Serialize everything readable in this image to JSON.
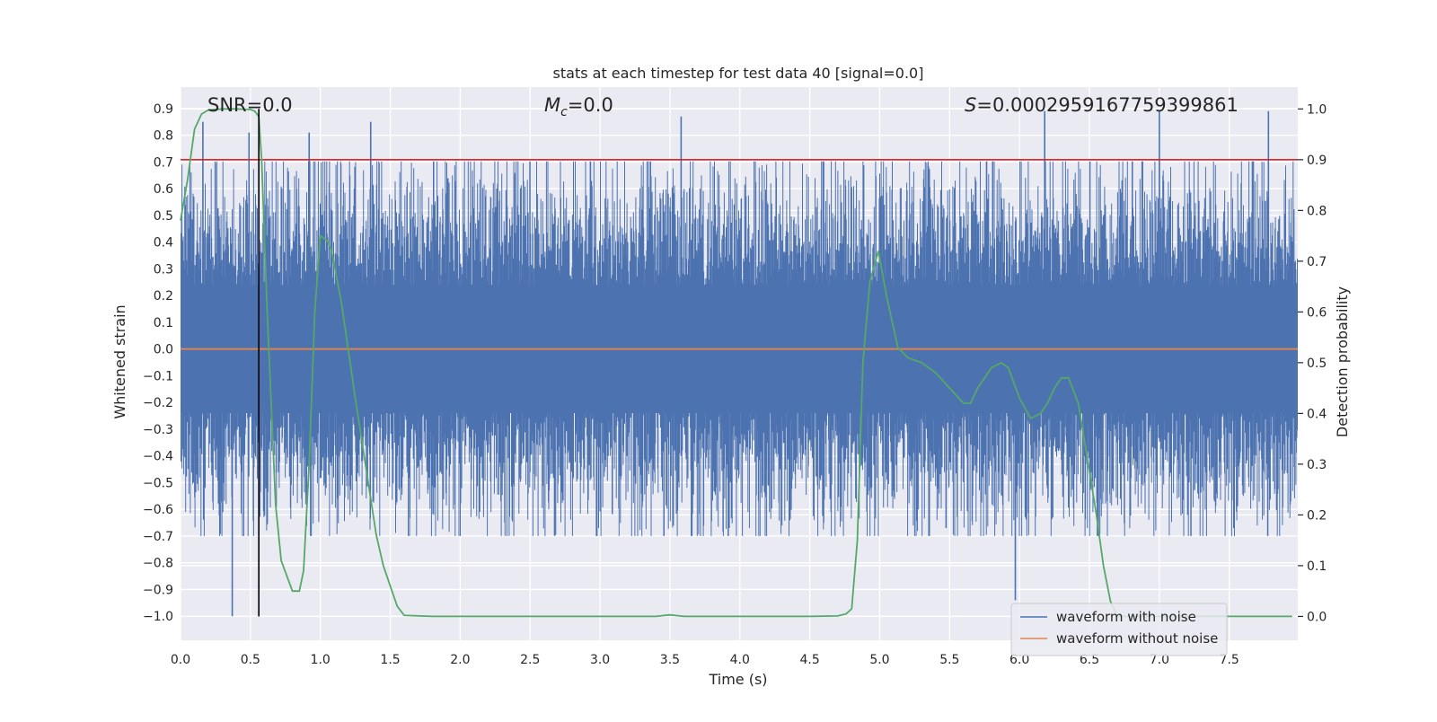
{
  "chart_data": {
    "type": "line",
    "title": "stats at each timestep for test data 40 [signal=0.0]",
    "xlabel": "Time (s)",
    "ylabel": "Whitened strain",
    "y2label": "Detection probability",
    "xlim": [
      0.0,
      7.99
    ],
    "ylim": [
      -1.09,
      0.98
    ],
    "y2lim": [
      -0.047,
      1.043
    ],
    "xticks": [
      0.0,
      0.5,
      1.0,
      1.5,
      2.0,
      2.5,
      3.0,
      3.5,
      4.0,
      4.5,
      5.0,
      5.5,
      6.0,
      6.5,
      7.0,
      7.5
    ],
    "xtick_labels": [
      "0.0",
      "0.5",
      "1.0",
      "1.5",
      "2.0",
      "2.5",
      "3.0",
      "3.5",
      "4.0",
      "4.5",
      "5.0",
      "5.5",
      "6.0",
      "6.5",
      "7.0",
      "7.5"
    ],
    "yticks": [
      0.9,
      0.8,
      0.7,
      0.6,
      0.5,
      0.4,
      0.3,
      0.2,
      0.1,
      0.0,
      -0.1,
      -0.2,
      -0.3,
      -0.4,
      -0.5,
      -0.6,
      -0.7,
      -0.8,
      -0.9,
      -1.0
    ],
    "ytick_labels": [
      "0.9",
      "0.8",
      "0.7",
      "0.6",
      "0.5",
      "0.4",
      "0.3",
      "0.2",
      "0.1",
      "0.0",
      "−0.1",
      "−0.2",
      "−0.3",
      "−0.4",
      "−0.5",
      "−0.6",
      "−0.7",
      "−0.8",
      "−0.9",
      "−1.0"
    ],
    "y2ticks": [
      1.0,
      0.9,
      0.8,
      0.7,
      0.6,
      0.5,
      0.4,
      0.3,
      0.2,
      0.1,
      0.0
    ],
    "y2tick_labels": [
      "1.0",
      "0.9",
      "0.8",
      "0.7",
      "0.6",
      "0.5",
      "0.4",
      "0.3",
      "0.2",
      "0.1",
      "0.0"
    ],
    "grid": true,
    "annotations": [
      {
        "name": "snr-annotation",
        "text": "SNR=0.0"
      },
      {
        "name": "mc-annotation",
        "text": "M",
        "sub": "c",
        "suffix": "=0.0"
      },
      {
        "name": "s-annotation",
        "text": "S",
        "suffix": "=0.0002959167759399861"
      }
    ],
    "threshold": {
      "name": "Detection threshold",
      "y2_value": 0.9,
      "color": "#d62728"
    },
    "vline": {
      "x": 0.56,
      "color": "#000000"
    },
    "series": [
      {
        "name": "waveform with noise",
        "axis": "left",
        "color": "#4c72b0",
        "kind": "noise",
        "band_sigma": 0.25,
        "spike_max": 0.9,
        "spike_min": -1.0,
        "spikes": [
          {
            "x": 0.16,
            "y": 0.85
          },
          {
            "x": 0.37,
            "y": -1.0
          },
          {
            "x": 0.49,
            "y": 0.81
          },
          {
            "x": 0.92,
            "y": 0.81
          },
          {
            "x": 1.36,
            "y": 0.85
          },
          {
            "x": 3.58,
            "y": 0.87
          },
          {
            "x": 5.97,
            "y": -0.94
          },
          {
            "x": 6.18,
            "y": 0.89
          },
          {
            "x": 7.0,
            "y": 0.89
          },
          {
            "x": 7.78,
            "y": 0.89
          }
        ]
      },
      {
        "name": "waveform without noise",
        "axis": "left",
        "color": "#dd8452",
        "x": [
          0.0,
          7.99
        ],
        "y": [
          0.0,
          0.0
        ]
      },
      {
        "name": "Detection probability",
        "axis": "right",
        "color": "#55a868",
        "x": [
          0.0,
          0.05,
          0.1,
          0.15,
          0.2,
          0.3,
          0.4,
          0.5,
          0.53,
          0.56,
          0.58,
          0.62,
          0.68,
          0.72,
          0.8,
          0.85,
          0.88,
          0.92,
          0.96,
          1.0,
          1.05,
          1.08,
          1.15,
          1.25,
          1.35,
          1.4,
          1.45,
          1.5,
          1.55,
          1.6,
          1.8,
          2.0,
          2.5,
          3.0,
          3.4,
          3.5,
          3.6,
          4.0,
          4.5,
          4.7,
          4.76,
          4.8,
          4.84,
          4.88,
          4.93,
          4.99,
          5.05,
          5.13,
          5.2,
          5.3,
          5.4,
          5.5,
          5.6,
          5.65,
          5.7,
          5.8,
          5.87,
          5.92,
          6.0,
          6.08,
          6.15,
          6.2,
          6.25,
          6.3,
          6.35,
          6.42,
          6.48,
          6.55,
          6.6,
          6.65,
          6.7,
          7.0,
          7.5,
          7.95
        ],
        "y": [
          0.78,
          0.86,
          0.96,
          0.99,
          0.998,
          1.0,
          1.0,
          0.999,
          0.996,
          0.985,
          0.9,
          0.6,
          0.22,
          0.11,
          0.05,
          0.05,
          0.09,
          0.3,
          0.6,
          0.75,
          0.74,
          0.72,
          0.62,
          0.43,
          0.25,
          0.16,
          0.1,
          0.06,
          0.02,
          0.002,
          0.0,
          0.0,
          0.0,
          0.0,
          0.0,
          0.003,
          0.0,
          0.0,
          0.0,
          0.001,
          0.005,
          0.015,
          0.15,
          0.5,
          0.66,
          0.72,
          0.63,
          0.53,
          0.51,
          0.5,
          0.48,
          0.45,
          0.42,
          0.42,
          0.45,
          0.49,
          0.5,
          0.49,
          0.43,
          0.39,
          0.4,
          0.42,
          0.45,
          0.47,
          0.47,
          0.42,
          0.32,
          0.2,
          0.1,
          0.03,
          0.0,
          0.0,
          0.0,
          0.0
        ]
      }
    ],
    "legend": {
      "placement": "lower-right",
      "entries": [
        {
          "label": "waveform with noise",
          "color": "#4c72b0"
        },
        {
          "label": "waveform without noise",
          "color": "#dd8452"
        }
      ]
    }
  }
}
